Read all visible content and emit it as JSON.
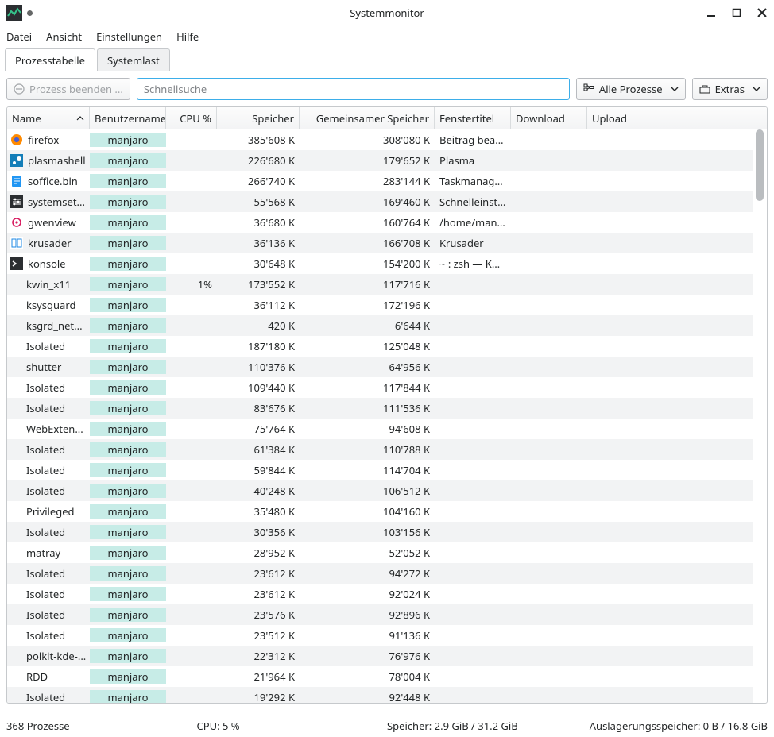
{
  "window": {
    "title": "Systemmonitor"
  },
  "menubar": {
    "items": [
      "Datei",
      "Ansicht",
      "Einstellungen",
      "Hilfe"
    ]
  },
  "tabs": {
    "items": [
      "Prozesstabelle",
      "Systemlast"
    ],
    "active": 0
  },
  "toolbar": {
    "end_process_label": "Prozess beenden ...",
    "search_placeholder": "Schnellsuche",
    "filter_label": "Alle Prozesse",
    "extras_label": "Extras"
  },
  "columns": {
    "name": "Name",
    "user": "Benutzername",
    "cpu": "CPU %",
    "mem": "Speicher",
    "shmem": "Gemeinsamer Speicher",
    "wintitle": "Fenstertitel",
    "download": "Download",
    "upload": "Upload"
  },
  "rows": [
    {
      "icon": "firefox",
      "name": "firefox",
      "user": "manjaro",
      "cpu": "",
      "mem": "385'608 K",
      "shmem": "308'080 K",
      "title": "Beitrag bearb..."
    },
    {
      "icon": "plasma",
      "name": "plasmashell",
      "user": "manjaro",
      "cpu": "",
      "mem": "226'680 K",
      "shmem": "179'652 K",
      "title": "Plasma"
    },
    {
      "icon": "doc",
      "name": "soffice.bin",
      "user": "manjaro",
      "cpu": "",
      "mem": "266'740 K",
      "shmem": "283'144 K",
      "title": "Taskmanager-..."
    },
    {
      "icon": "settings",
      "name": "systemset...",
      "user": "manjaro",
      "cpu": "",
      "mem": "55'568 K",
      "shmem": "169'460 K",
      "title": "Schnelleinstell..."
    },
    {
      "icon": "gwen",
      "name": "gwenview",
      "user": "manjaro",
      "cpu": "",
      "mem": "36'680 K",
      "shmem": "160'764 K",
      "title": "/home/manjar..."
    },
    {
      "icon": "krusader",
      "name": "krusader",
      "user": "manjaro",
      "cpu": "",
      "mem": "36'136 K",
      "shmem": "166'708 K",
      "title": "Krusader"
    },
    {
      "icon": "konsole",
      "name": "konsole",
      "user": "manjaro",
      "cpu": "",
      "mem": "30'648 K",
      "shmem": "154'200 K",
      "title": "~ : zsh — Kons..."
    },
    {
      "icon": "",
      "name": "kwin_x11",
      "user": "manjaro",
      "cpu": "1%",
      "mem": "173'552 K",
      "shmem": "117'716 K",
      "title": ""
    },
    {
      "icon": "",
      "name": "ksysguard",
      "user": "manjaro",
      "cpu": "",
      "mem": "36'112 K",
      "shmem": "172'196 K",
      "title": ""
    },
    {
      "icon": "",
      "name": "ksgrd_net...",
      "user": "manjaro",
      "cpu": "",
      "mem": "420 K",
      "shmem": "6'644 K",
      "title": ""
    },
    {
      "icon": "",
      "name": "Isolated",
      "user": "manjaro",
      "cpu": "",
      "mem": "187'180 K",
      "shmem": "125'048 K",
      "title": ""
    },
    {
      "icon": "",
      "name": "shutter",
      "user": "manjaro",
      "cpu": "",
      "mem": "110'376 K",
      "shmem": "64'956 K",
      "title": ""
    },
    {
      "icon": "",
      "name": "Isolated",
      "user": "manjaro",
      "cpu": "",
      "mem": "109'440 K",
      "shmem": "117'844 K",
      "title": ""
    },
    {
      "icon": "",
      "name": "Isolated",
      "user": "manjaro",
      "cpu": "",
      "mem": "83'676 K",
      "shmem": "111'536 K",
      "title": ""
    },
    {
      "icon": "",
      "name": "WebExten...",
      "user": "manjaro",
      "cpu": "",
      "mem": "75'764 K",
      "shmem": "94'608 K",
      "title": ""
    },
    {
      "icon": "",
      "name": "Isolated",
      "user": "manjaro",
      "cpu": "",
      "mem": "61'384 K",
      "shmem": "110'788 K",
      "title": ""
    },
    {
      "icon": "",
      "name": "Isolated",
      "user": "manjaro",
      "cpu": "",
      "mem": "59'844 K",
      "shmem": "114'704 K",
      "title": ""
    },
    {
      "icon": "",
      "name": "Isolated",
      "user": "manjaro",
      "cpu": "",
      "mem": "40'248 K",
      "shmem": "106'512 K",
      "title": ""
    },
    {
      "icon": "",
      "name": "Privileged",
      "user": "manjaro",
      "cpu": "",
      "mem": "35'480 K",
      "shmem": "104'160 K",
      "title": ""
    },
    {
      "icon": "",
      "name": "Isolated",
      "user": "manjaro",
      "cpu": "",
      "mem": "30'356 K",
      "shmem": "103'156 K",
      "title": ""
    },
    {
      "icon": "",
      "name": "matray",
      "user": "manjaro",
      "cpu": "",
      "mem": "28'952 K",
      "shmem": "52'052 K",
      "title": ""
    },
    {
      "icon": "",
      "name": "Isolated",
      "user": "manjaro",
      "cpu": "",
      "mem": "23'612 K",
      "shmem": "94'272 K",
      "title": ""
    },
    {
      "icon": "",
      "name": "Isolated",
      "user": "manjaro",
      "cpu": "",
      "mem": "23'612 K",
      "shmem": "92'024 K",
      "title": ""
    },
    {
      "icon": "",
      "name": "Isolated",
      "user": "manjaro",
      "cpu": "",
      "mem": "23'576 K",
      "shmem": "92'896 K",
      "title": ""
    },
    {
      "icon": "",
      "name": "Isolated",
      "user": "manjaro",
      "cpu": "",
      "mem": "23'512 K",
      "shmem": "91'136 K",
      "title": ""
    },
    {
      "icon": "",
      "name": "polkit-kde-...",
      "user": "manjaro",
      "cpu": "",
      "mem": "22'312 K",
      "shmem": "76'976 K",
      "title": ""
    },
    {
      "icon": "",
      "name": "RDD",
      "user": "manjaro",
      "cpu": "",
      "mem": "21'964 K",
      "shmem": "78'004 K",
      "title": ""
    },
    {
      "icon": "",
      "name": "Isolated",
      "user": "manjaro",
      "cpu": "",
      "mem": "19'292 K",
      "shmem": "92'448 K",
      "title": ""
    }
  ],
  "status": {
    "processes": "368 Prozesse",
    "cpu": "CPU: 5 %",
    "memory": "Speicher: 2.9 GiB / 31.2 GiB",
    "swap": "Auslagerungsspeicher: 0 B / 16.8 GiB"
  },
  "icons": {
    "firefox": {
      "bg": "#ff8a00",
      "fg": "#ffffff"
    },
    "plasma": {
      "bg": "#147eb8",
      "fg": "#ffffff"
    },
    "doc": {
      "bg": "#2196f3",
      "fg": "#ffffff"
    },
    "settings": {
      "bg": "#2b2e31",
      "fg": "#ffffff"
    },
    "gwen": {
      "bg": "#ffffff",
      "fg": "#d81b60"
    },
    "krusader": {
      "bg": "#ffffff",
      "fg": "#1e88e5"
    },
    "konsole": {
      "bg": "#2b2e31",
      "fg": "#ffffff"
    }
  }
}
